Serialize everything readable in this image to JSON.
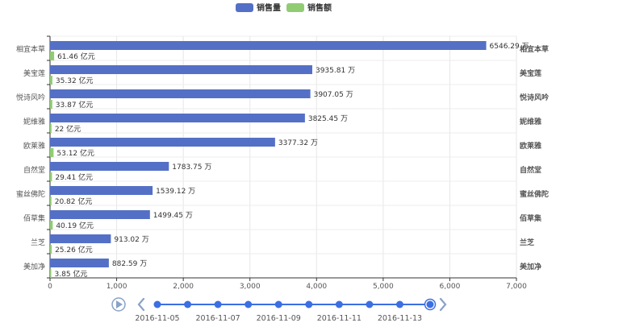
{
  "chart_data": {
    "type": "bar",
    "orientation": "horizontal",
    "categories": [
      "相宜本草",
      "美宝莲",
      "悦诗风吟",
      "妮维雅",
      "欧莱雅",
      "自然堂",
      "蜜丝佛陀",
      "佰草集",
      "兰芝",
      "美加净"
    ],
    "right_axis_labels": [
      "相宜本草",
      "美宝莲",
      "悦诗风吟",
      "妮维雅",
      "欧莱雅",
      "自然堂",
      "蜜丝佛陀",
      "佰草集",
      "兰芝",
      "美加净"
    ],
    "series": [
      {
        "name": "销售量",
        "color": "#5470c6",
        "values": [
          6546.29,
          3935.81,
          3907.05,
          3825.45,
          3377.32,
          1783.75,
          1539.12,
          1499.45,
          913.02,
          882.59
        ],
        "labels": [
          "6546.29 万",
          "3935.81 万",
          "3907.05 万",
          "3825.45 万",
          "3377.32 万",
          "1783.75 万",
          "1539.12 万",
          "1499.45 万",
          "913.02 万",
          "882.59 万"
        ]
      },
      {
        "name": "销售额",
        "color": "#91cc75",
        "values": [
          61.46,
          35.32,
          33.87,
          22,
          53.12,
          29.41,
          20.82,
          40.19,
          25.26,
          3.85
        ],
        "labels": [
          "61.46 亿元",
          "35.32 亿元",
          "33.87 亿元",
          "22 亿元",
          "53.12 亿元",
          "29.41 亿元",
          "20.82 亿元",
          "40.19 亿元",
          "25.26 亿元",
          "3.85 亿元"
        ]
      }
    ],
    "xlim": [
      0,
      7000
    ],
    "xticks": [
      0,
      1000,
      2000,
      3000,
      4000,
      5000,
      6000,
      7000
    ],
    "xtick_labels": [
      "0",
      "1,000",
      "2,000",
      "3,000",
      "4,000",
      "5,000",
      "6,000",
      "7,000"
    ],
    "grid": true,
    "legend_position": "top-center"
  },
  "timeline": {
    "labels": [
      "2016-11-05",
      "2016-11-07",
      "2016-11-09",
      "2016-11-11",
      "2016-11-13"
    ],
    "point_count": 10,
    "selected_index": 9,
    "color": "#3b6fe3"
  }
}
